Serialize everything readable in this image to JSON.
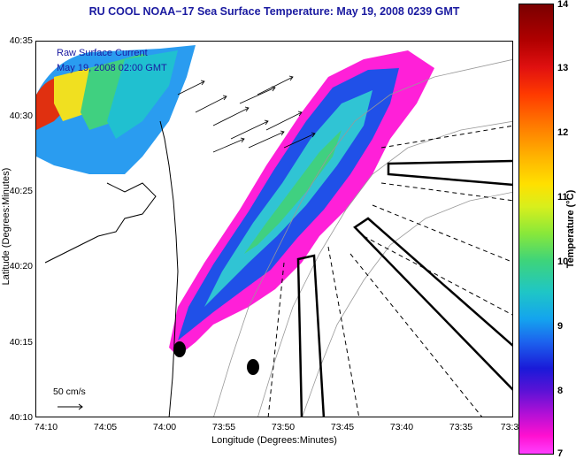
{
  "map": {
    "title": "RU COOL  NOAA−17  Sea Surface Temperature:  May 19, 2008 0239 GMT",
    "legend_line1": "Raw Surface Current",
    "legend_line2": "May 19, 2008 02:00 GMT",
    "scale_label": "50 cm/s",
    "xlabel": "Longitude (Degrees:Minutes)",
    "ylabel": "Latitude (Degrees:Minutes)",
    "xticks": [
      "74:10",
      "74:05",
      "74:00",
      "73:55",
      "73:50",
      "73:45",
      "73:40",
      "73:35",
      "73:3"
    ],
    "yticks": [
      "40:35",
      "40:30",
      "40:25",
      "40:20",
      "40:15",
      "40:10"
    ]
  },
  "colorbar": {
    "label": "Temperature (°C)",
    "ticks": [
      "14",
      "13",
      "12",
      "11",
      "10",
      "9",
      "8",
      "7"
    ],
    "min": 7,
    "max": 14
  },
  "colors": {
    "title": "#1a1aa0",
    "land_line": "#000000"
  }
}
